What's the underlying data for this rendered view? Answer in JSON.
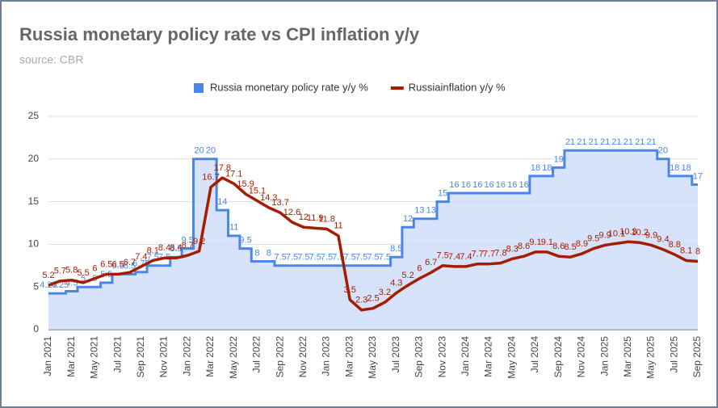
{
  "chart_data": {
    "type": "step-area-line",
    "title": "Russia monetary policy rate vs CPI inflation y/y",
    "subtitle": "source: CBR",
    "categories": [
      "Jan 2021",
      null,
      "Mar 2021",
      null,
      "May 2021",
      null,
      "Jul 2021",
      null,
      "Sep 2021",
      null,
      "Nov 2021",
      null,
      "Jan 2022",
      null,
      "Mar 2022",
      null,
      "May 2022",
      null,
      "Jul 2022",
      null,
      "Sep 2022",
      null,
      "Nov 2022",
      null,
      "Jan 2023",
      null,
      "Mar 2023",
      null,
      "May 2023",
      null,
      "Jul 2023",
      null,
      "Sep 2023",
      null,
      "Nov 2023",
      null,
      "Jan 2024",
      null,
      "Mar 2024",
      null,
      "May 2024",
      null,
      "Jul 2024",
      null,
      "Sep 2024",
      null,
      "Nov 2024",
      null,
      "Jan 2025",
      null,
      "Mar 2025",
      null,
      "May 2025",
      null,
      "Jul 2025",
      null,
      "Sep 2025"
    ],
    "series": [
      {
        "name": "Russia monetary policy rate y/y %",
        "color": "#4a86e8",
        "fill": "#c9daf8",
        "style": "step-area",
        "values": [
          4.25,
          4.25,
          4.5,
          5,
          5,
          5.5,
          6.5,
          6.5,
          6.75,
          7.5,
          7.5,
          8.5,
          9.5,
          20,
          20,
          14,
          11,
          9.5,
          8,
          8,
          7.5,
          7.5,
          7.5,
          7.5,
          7.5,
          7.5,
          7.5,
          7.5,
          7.5,
          7.5,
          8.5,
          12,
          13,
          13,
          15,
          16,
          16,
          16,
          16,
          16,
          16,
          16,
          18,
          18,
          19,
          21,
          21,
          21,
          21,
          21,
          21,
          21,
          21,
          20,
          18,
          18,
          17
        ]
      },
      {
        "name": "Russiainflation y/y %",
        "color": "#a61c00",
        "style": "line",
        "values": [
          5.2,
          5.7,
          5.8,
          5.5,
          6.0,
          6.5,
          6.5,
          6.7,
          7.4,
          8.1,
          8.4,
          8.4,
          8.7,
          9.2,
          16.7,
          17.8,
          17.1,
          15.9,
          15.1,
          14.3,
          13.7,
          12.6,
          12.0,
          11.9,
          11.8,
          11.0,
          3.5,
          2.3,
          2.5,
          3.2,
          4.3,
          5.2,
          6.0,
          6.7,
          7.5,
          7.4,
          7.4,
          7.7,
          7.7,
          7.8,
          8.3,
          8.6,
          9.1,
          9.1,
          8.6,
          8.5,
          8.9,
          9.5,
          9.9,
          10.1,
          10.3,
          10.2,
          9.9,
          9.4,
          8.8,
          8.1,
          8.0
        ]
      }
    ],
    "ylim": [
      0,
      25
    ],
    "yticks": [
      0,
      5,
      10,
      15,
      20,
      25
    ],
    "grid": true,
    "legend": "top"
  }
}
